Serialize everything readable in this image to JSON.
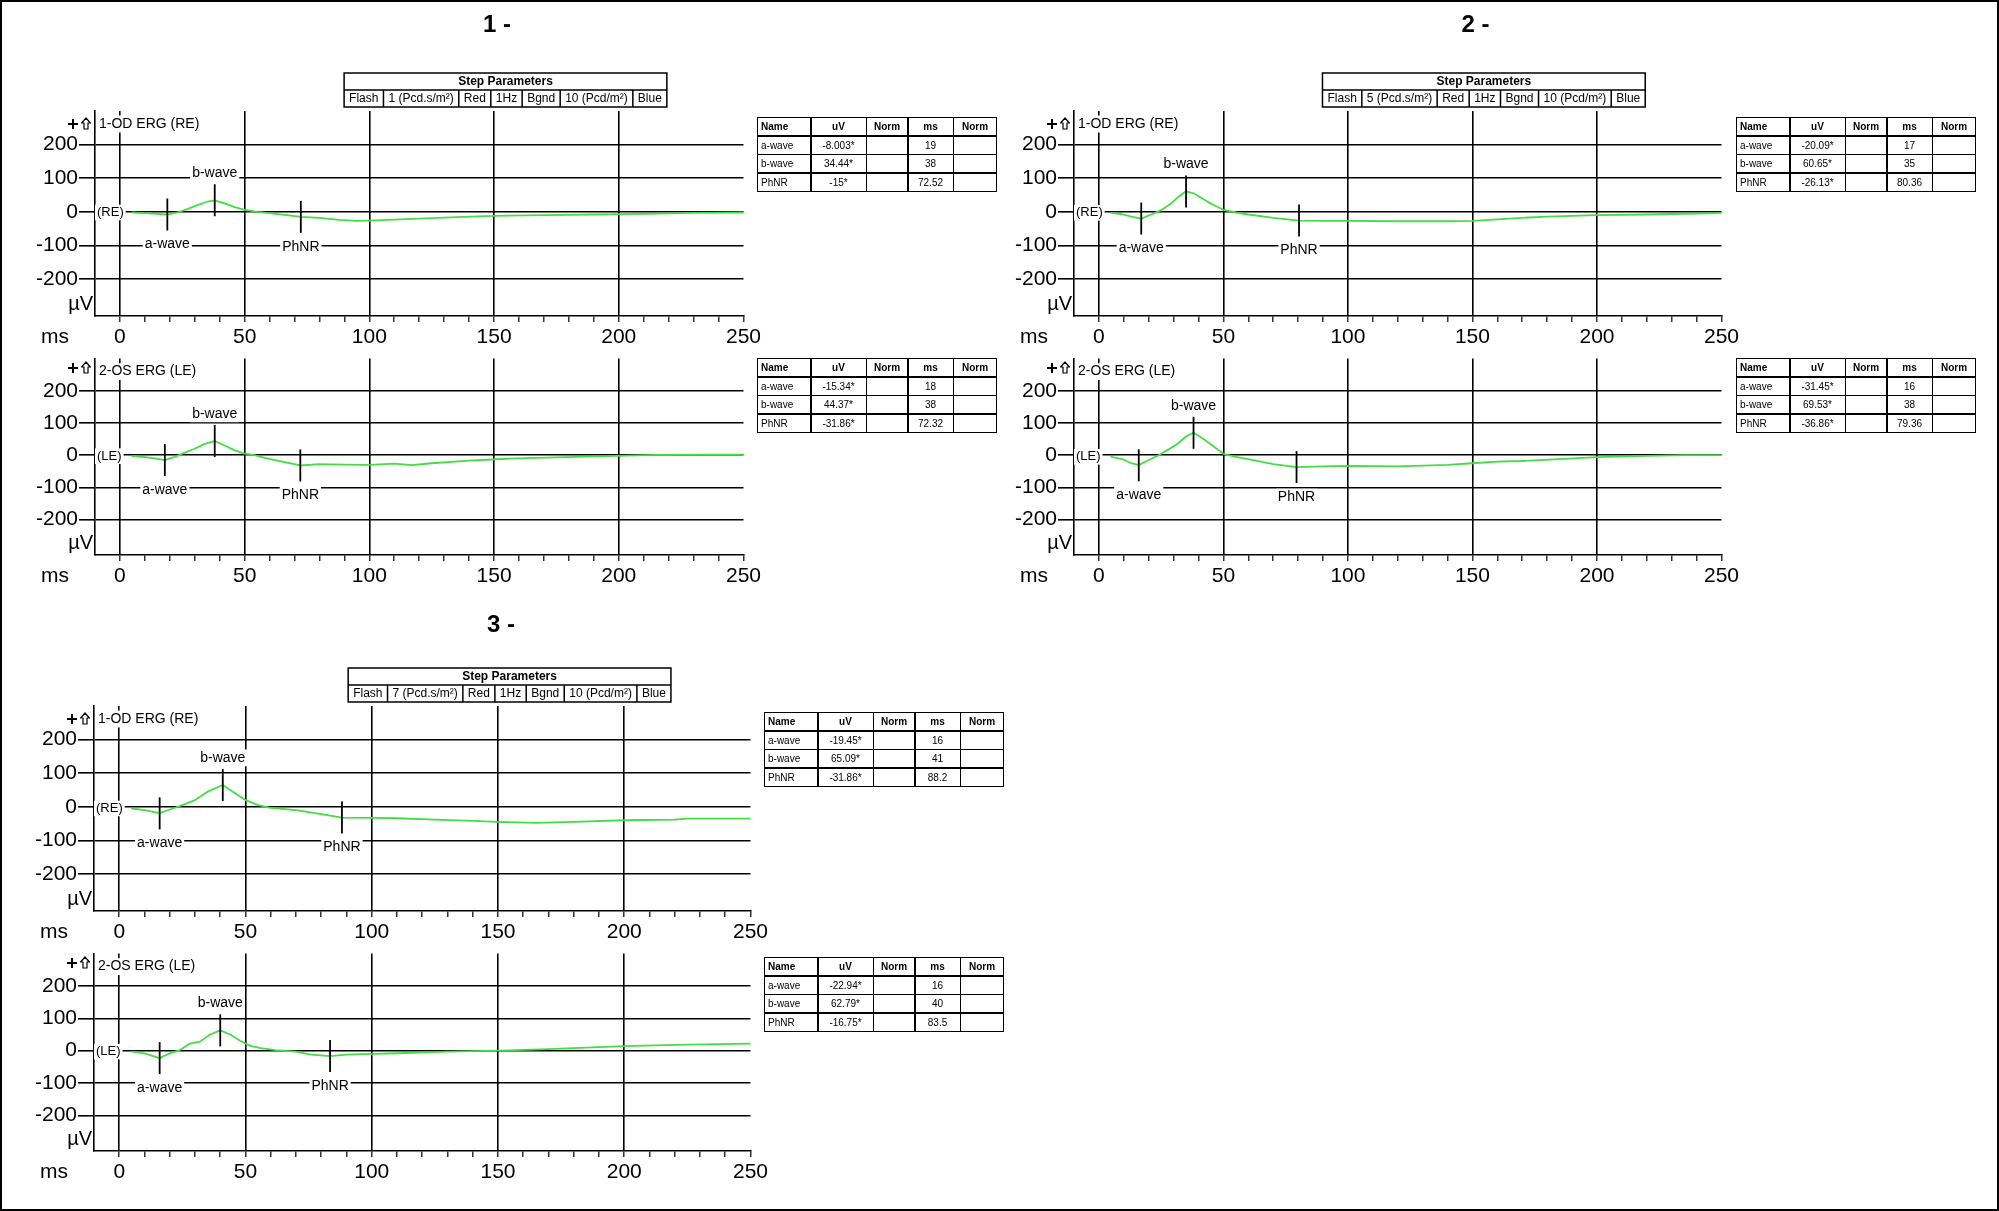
{
  "chart_data": [
    {
      "type": "line",
      "title": "1 -",
      "subtitle": "1-OD ERG (RE)",
      "xlabel": "ms",
      "ylabel": "µV",
      "xlim": [
        -10,
        250
      ],
      "ylim": [
        -310,
        300
      ],
      "yticks": [
        -200,
        -100,
        0,
        100,
        200
      ],
      "xticks": [
        0,
        {
          "value": 10,
          "label": null
        },
        {
          "value": 20,
          "label": null
        },
        {
          "value": 30,
          "label": null
        },
        {
          "value": 40,
          "label": null
        },
        50,
        {
          "value": 60,
          "label": null
        },
        {
          "value": 70,
          "label": null
        },
        {
          "value": 80,
          "label": null
        },
        {
          "value": 90,
          "label": null
        },
        100,
        {
          "value": 110,
          "label": null
        },
        {
          "value": 120,
          "label": null
        },
        {
          "value": 130,
          "label": null
        },
        {
          "value": 140,
          "label": null
        },
        150,
        {
          "value": 160,
          "label": null
        },
        {
          "value": 170,
          "label": null
        },
        {
          "value": 180,
          "label": null
        },
        {
          "value": 190,
          "label": null
        },
        200,
        {
          "value": 210,
          "label": null
        },
        {
          "value": 220,
          "label": null
        },
        {
          "value": 230,
          "label": null
        },
        {
          "value": 240,
          "label": null
        },
        250
      ],
      "grid": true,
      "series": [
        {
          "name": "(RE)",
          "color": "#44dd44",
          "x": [
            5,
            10,
            15,
            19,
            23,
            27,
            31,
            35,
            38,
            42,
            46,
            50,
            55,
            60,
            66,
            72.52,
            80,
            88,
            95,
            100,
            110,
            120,
            135,
            150,
            170,
            190,
            210,
            230,
            250
          ],
          "values": [
            -2,
            -4,
            -6,
            -8,
            -2,
            8,
            20,
            30,
            34,
            25,
            14,
            6,
            0,
            -4,
            -9,
            -15,
            -18,
            -24,
            -27,
            -26,
            -23,
            -20,
            -16,
            -12,
            -10,
            -8,
            -6,
            -3,
            -2
          ]
        }
      ],
      "annotations": [
        {
          "text": "a-wave",
          "x": 19,
          "y": -8.003
        },
        {
          "text": "b-wave",
          "x": 38,
          "y": 34.44
        },
        {
          "text": "PhNR",
          "x": 72.52,
          "y": -15
        },
        "Step Parameters",
        "Flash",
        "1 (Pcd.s/m²)",
        "Red",
        "1Hz",
        "Bgnd",
        "10 (Pcd/m²)",
        "Blue"
      ]
    },
    {
      "type": "other",
      "xlabel": "Name",
      "legend": "top",
      "categories": [
        "a-wave",
        "b-wave",
        "PhNR"
      ],
      "data_labels": true,
      "series": [
        {
          "name": "uV",
          "values": [
            -8.003,
            34.44,
            -15
          ],
          "value_labels": [
            "-8.003*",
            "34.44*",
            "-15*"
          ]
        },
        {
          "name": "Norm",
          "values": [
            null,
            null,
            null
          ]
        },
        {
          "name": "ms",
          "values": [
            19,
            38,
            72.52
          ]
        },
        {
          "name": "Norm",
          "values": [
            null,
            null,
            null
          ]
        }
      ]
    },
    {
      "type": "line",
      "subtitle": "2-OS ERG (LE)",
      "xlabel": "ms",
      "ylabel": "µV",
      "xlim": [
        -10,
        250
      ],
      "ylim": [
        -310,
        300
      ],
      "yticks": [
        -200,
        -100,
        0,
        100,
        200
      ],
      "xticks": [
        0,
        {
          "value": 10,
          "label": null
        },
        {
          "value": 20,
          "label": null
        },
        {
          "value": 30,
          "label": null
        },
        {
          "value": 40,
          "label": null
        },
        50,
        {
          "value": 60,
          "label": null
        },
        {
          "value": 70,
          "label": null
        },
        {
          "value": 80,
          "label": null
        },
        {
          "value": 90,
          "label": null
        },
        100,
        {
          "value": 110,
          "label": null
        },
        {
          "value": 120,
          "label": null
        },
        {
          "value": 130,
          "label": null
        },
        {
          "value": 140,
          "label": null
        },
        150,
        {
          "value": 160,
          "label": null
        },
        {
          "value": 170,
          "label": null
        },
        {
          "value": 180,
          "label": null
        },
        {
          "value": 190,
          "label": null
        },
        200,
        {
          "value": 210,
          "label": null
        },
        {
          "value": 220,
          "label": null
        },
        {
          "value": 230,
          "label": null
        },
        {
          "value": 240,
          "label": null
        },
        250
      ],
      "grid": true,
      "series": [
        {
          "name": "(LE)",
          "color": "#44dd44",
          "x": [
            5,
            10,
            14,
            18,
            22,
            26,
            30,
            34,
            38,
            42,
            46,
            50,
            54,
            58,
            65,
            72.32,
            80,
            90,
            100,
            110,
            117,
            125,
            140,
            155,
            175,
            195,
            215,
            235,
            250
          ],
          "values": [
            -3,
            -6,
            -10,
            -15,
            -5,
            8,
            20,
            35,
            44,
            30,
            15,
            5,
            0,
            -8,
            -20,
            -32,
            -28,
            -29,
            -30,
            -26,
            -31,
            -25,
            -17,
            -11,
            -7,
            -3,
            1,
            2,
            2
          ]
        }
      ],
      "annotations": [
        {
          "text": "a-wave",
          "x": 18,
          "y": -15.34
        },
        {
          "text": "b-wave",
          "x": 38,
          "y": 44.37
        },
        {
          "text": "PhNR",
          "x": 72.32,
          "y": -31.86
        }
      ]
    },
    {
      "type": "other",
      "xlabel": "Name",
      "legend": "top",
      "categories": [
        "a-wave",
        "b-wave",
        "PhNR"
      ],
      "data_labels": true,
      "series": [
        {
          "name": "uV",
          "values": [
            -15.34,
            44.37,
            -31.86
          ],
          "value_labels": [
            "-15.34*",
            "44.37*",
            "-31.86*"
          ]
        },
        {
          "name": "Norm",
          "values": [
            null,
            null,
            null
          ]
        },
        {
          "name": "ms",
          "values": [
            18,
            38,
            72.32
          ]
        },
        {
          "name": "Norm",
          "values": [
            null,
            null,
            null
          ]
        }
      ]
    },
    {
      "type": "line",
      "title": "2 -",
      "subtitle": "1-OD ERG (RE)",
      "xlabel": "ms",
      "ylabel": "µV",
      "xlim": [
        -10,
        250
      ],
      "ylim": [
        -310,
        300
      ],
      "yticks": [
        -200,
        -100,
        0,
        100,
        200
      ],
      "xticks": [
        0,
        {
          "value": 10,
          "label": null
        },
        {
          "value": 20,
          "label": null
        },
        {
          "value": 30,
          "label": null
        },
        {
          "value": 40,
          "label": null
        },
        50,
        {
          "value": 60,
          "label": null
        },
        {
          "value": 70,
          "label": null
        },
        {
          "value": 80,
          "label": null
        },
        {
          "value": 90,
          "label": null
        },
        100,
        {
          "value": 110,
          "label": null
        },
        {
          "value": 120,
          "label": null
        },
        {
          "value": 130,
          "label": null
        },
        {
          "value": 140,
          "label": null
        },
        150,
        {
          "value": 160,
          "label": null
        },
        {
          "value": 170,
          "label": null
        },
        {
          "value": 180,
          "label": null
        },
        {
          "value": 190,
          "label": null
        },
        200,
        {
          "value": 210,
          "label": null
        },
        {
          "value": 220,
          "label": null
        },
        {
          "value": 230,
          "label": null
        },
        {
          "value": 240,
          "label": null
        },
        250
      ],
      "grid": true,
      "series": [
        {
          "name": "(RE)",
          "color": "#44dd44",
          "x": [
            5,
            10,
            13,
            17,
            21,
            25,
            29,
            32,
            35,
            38,
            41,
            45,
            50,
            55,
            60,
            70,
            80.36,
            90,
            100,
            120,
            140,
            150,
            165,
            180,
            200,
            220,
            240,
            250
          ],
          "values": [
            -3,
            -8,
            -14,
            -20,
            -8,
            5,
            25,
            45,
            61,
            55,
            42,
            24,
            6,
            -2,
            -8,
            -18,
            -26,
            -27,
            -27,
            -28,
            -28,
            -27,
            -20,
            -14,
            -10,
            -8,
            -5,
            -3
          ]
        }
      ],
      "annotations": [
        {
          "text": "a-wave",
          "x": 17,
          "y": -20.09
        },
        {
          "text": "b-wave",
          "x": 35,
          "y": 60.65
        },
        {
          "text": "PhNR",
          "x": 80.36,
          "y": -26.13
        },
        "Step Parameters",
        "Flash",
        "5 (Pcd.s/m²)",
        "Red",
        "1Hz",
        "Bgnd",
        "10 (Pcd/m²)",
        "Blue"
      ]
    },
    {
      "type": "other",
      "xlabel": "Name",
      "legend": "top",
      "categories": [
        "a-wave",
        "b-wave",
        "PhNR"
      ],
      "data_labels": true,
      "series": [
        {
          "name": "uV",
          "values": [
            -20.09,
            60.65,
            -26.13
          ],
          "value_labels": [
            "-20.09*",
            "60.65*",
            "-26.13*"
          ]
        },
        {
          "name": "Norm",
          "values": [
            null,
            null,
            null
          ]
        },
        {
          "name": "ms",
          "values": [
            17,
            35,
            80.36
          ]
        },
        {
          "name": "Norm",
          "values": [
            null,
            null,
            null
          ]
        }
      ]
    },
    {
      "type": "line",
      "subtitle": "2-OS ERG (LE)",
      "xlabel": "ms",
      "ylabel": "µV",
      "xlim": [
        -10,
        250
      ],
      "ylim": [
        -310,
        300
      ],
      "yticks": [
        -200,
        -100,
        0,
        100,
        200
      ],
      "xticks": [
        0,
        {
          "value": 10,
          "label": null
        },
        {
          "value": 20,
          "label": null
        },
        {
          "value": 30,
          "label": null
        },
        {
          "value": 40,
          "label": null
        },
        50,
        {
          "value": 60,
          "label": null
        },
        {
          "value": 70,
          "label": null
        },
        {
          "value": 80,
          "label": null
        },
        {
          "value": 90,
          "label": null
        },
        100,
        {
          "value": 110,
          "label": null
        },
        {
          "value": 120,
          "label": null
        },
        {
          "value": 130,
          "label": null
        },
        {
          "value": 140,
          "label": null
        },
        150,
        {
          "value": 160,
          "label": null
        },
        {
          "value": 170,
          "label": null
        },
        {
          "value": 180,
          "label": null
        },
        {
          "value": 190,
          "label": null
        },
        200,
        {
          "value": 210,
          "label": null
        },
        {
          "value": 220,
          "label": null
        },
        {
          "value": 230,
          "label": null
        },
        {
          "value": 240,
          "label": null
        },
        250
      ],
      "grid": true,
      "series": [
        {
          "name": "(LE)",
          "color": "#44dd44",
          "x": [
            5,
            10,
            13,
            16,
            20,
            24,
            28,
            32,
            35,
            38,
            42,
            46,
            50,
            55,
            62,
            70,
            79.36,
            90,
            100,
            120,
            140,
            150,
            160,
            170,
            185,
            200,
            220,
            235,
            250
          ],
          "values": [
            -5,
            -14,
            -25,
            -31,
            -15,
            0,
            18,
            38,
            58,
            70,
            50,
            28,
            4,
            -5,
            -15,
            -28,
            -37,
            -35,
            -33,
            -35,
            -30,
            -25,
            -20,
            -18,
            -12,
            -6,
            -2,
            0,
            0
          ]
        }
      ],
      "annotations": [
        {
          "text": "a-wave",
          "x": 16,
          "y": -31.45
        },
        {
          "text": "b-wave",
          "x": 38,
          "y": 69.53
        },
        {
          "text": "PhNR",
          "x": 79.36,
          "y": -36.86
        }
      ]
    },
    {
      "type": "other",
      "xlabel": "Name",
      "legend": "top",
      "categories": [
        "a-wave",
        "b-wave",
        "PhNR"
      ],
      "data_labels": true,
      "series": [
        {
          "name": "uV",
          "values": [
            -31.45,
            69.53,
            -36.86
          ],
          "value_labels": [
            "-31.45*",
            "69.53*",
            "-36.86*"
          ]
        },
        {
          "name": "Norm",
          "values": [
            null,
            null,
            null
          ]
        },
        {
          "name": "ms",
          "values": [
            16,
            38,
            79.36
          ]
        },
        {
          "name": "Norm",
          "values": [
            null,
            null,
            null
          ]
        }
      ]
    },
    {
      "type": "line",
      "title": "3 -",
      "subtitle": "1-OD ERG (RE)",
      "xlabel": "ms",
      "ylabel": "µV",
      "xlim": [
        -10,
        250
      ],
      "ylim": [
        -310,
        300
      ],
      "yticks": [
        -200,
        -100,
        0,
        100,
        200
      ],
      "xticks": [
        0,
        {
          "value": 10,
          "label": null
        },
        {
          "value": 20,
          "label": null
        },
        {
          "value": 30,
          "label": null
        },
        {
          "value": 40,
          "label": null
        },
        50,
        {
          "value": 60,
          "label": null
        },
        {
          "value": 70,
          "label": null
        },
        {
          "value": 80,
          "label": null
        },
        {
          "value": 90,
          "label": null
        },
        100,
        {
          "value": 110,
          "label": null
        },
        {
          "value": 120,
          "label": null
        },
        {
          "value": 130,
          "label": null
        },
        {
          "value": 140,
          "label": null
        },
        150,
        {
          "value": 160,
          "label": null
        },
        {
          "value": 170,
          "label": null
        },
        {
          "value": 180,
          "label": null
        },
        {
          "value": 190,
          "label": null
        },
        200,
        {
          "value": 210,
          "label": null
        },
        {
          "value": 220,
          "label": null
        },
        {
          "value": 230,
          "label": null
        },
        {
          "value": 240,
          "label": null
        },
        250
      ],
      "grid": true,
      "series": [
        {
          "name": "(RE)",
          "color": "#44dd44",
          "x": [
            5,
            10,
            16,
            20,
            25,
            30,
            35,
            41,
            45,
            50,
            55,
            60,
            70,
            80,
            88.2,
            100,
            110,
            125,
            140,
            150,
            165,
            180,
            200,
            220,
            225,
            235,
            250
          ],
          "values": [
            -5,
            -10,
            -19,
            -8,
            5,
            20,
            45,
            65,
            45,
            20,
            5,
            -3,
            -10,
            -22,
            -32,
            -33,
            -34,
            -38,
            -42,
            -45,
            -48,
            -45,
            -40,
            -38,
            -35,
            -35,
            -35
          ]
        }
      ],
      "annotations": [
        {
          "text": "a-wave",
          "x": 16,
          "y": -19.45
        },
        {
          "text": "b-wave",
          "x": 41,
          "y": 65.09
        },
        {
          "text": "PhNR",
          "x": 88.2,
          "y": -31.86
        },
        "Step Parameters",
        "Flash",
        "7 (Pcd.s/m²)",
        "Red",
        "1Hz",
        "Bgnd",
        "10 (Pcd/m²)",
        "Blue"
      ]
    },
    {
      "type": "other",
      "xlabel": "Name",
      "legend": "top",
      "categories": [
        "a-wave",
        "b-wave",
        "PhNR"
      ],
      "data_labels": true,
      "series": [
        {
          "name": "uV",
          "values": [
            -19.45,
            65.09,
            -31.86
          ],
          "value_labels": [
            "-19.45*",
            "65.09*",
            "-31.86*"
          ]
        },
        {
          "name": "Norm",
          "values": [
            null,
            null,
            null
          ]
        },
        {
          "name": "ms",
          "values": [
            16,
            41,
            88.2
          ]
        },
        {
          "name": "Norm",
          "values": [
            null,
            null,
            null
          ]
        }
      ]
    },
    {
      "type": "line",
      "subtitle": "2-OS ERG (LE)",
      "xlabel": "ms",
      "ylabel": "µV",
      "xlim": [
        -10,
        250
      ],
      "ylim": [
        -310,
        300
      ],
      "yticks": [
        -200,
        -100,
        0,
        100,
        200
      ],
      "xticks": [
        0,
        {
          "value": 10,
          "label": null
        },
        {
          "value": 20,
          "label": null
        },
        {
          "value": 30,
          "label": null
        },
        {
          "value": 40,
          "label": null
        },
        50,
        {
          "value": 60,
          "label": null
        },
        {
          "value": 70,
          "label": null
        },
        {
          "value": 80,
          "label": null
        },
        {
          "value": 90,
          "label": null
        },
        100,
        {
          "value": 110,
          "label": null
        },
        {
          "value": 120,
          "label": null
        },
        {
          "value": 130,
          "label": null
        },
        {
          "value": 140,
          "label": null
        },
        150,
        {
          "value": 160,
          "label": null
        },
        {
          "value": 170,
          "label": null
        },
        {
          "value": 180,
          "label": null
        },
        {
          "value": 190,
          "label": null
        },
        200,
        {
          "value": 210,
          "label": null
        },
        {
          "value": 220,
          "label": null
        },
        {
          "value": 230,
          "label": null
        },
        {
          "value": 240,
          "label": null
        },
        250
      ],
      "grid": true,
      "series": [
        {
          "name": "(LE)",
          "color": "#44dd44",
          "x": [
            5,
            10,
            16,
            20,
            24,
            28,
            32,
            36,
            40,
            44,
            48,
            52,
            56,
            62,
            70,
            76,
            83.5,
            90,
            100,
            110,
            130,
            150,
            170,
            180,
            200,
            220,
            250
          ],
          "values": [
            -3,
            -8,
            -23,
            -8,
            2,
            22,
            28,
            50,
            63,
            50,
            30,
            15,
            8,
            2,
            -3,
            -12,
            -17,
            -12,
            -10,
            -8,
            -3,
            0,
            5,
            8,
            14,
            18,
            22
          ]
        }
      ],
      "annotations": [
        {
          "text": "a-wave",
          "x": 16,
          "y": -22.94
        },
        {
          "text": "b-wave",
          "x": 40,
          "y": 62.79
        },
        {
          "text": "PhNR",
          "x": 83.5,
          "y": -16.75
        }
      ]
    },
    {
      "type": "other",
      "xlabel": "Name",
      "legend": "top",
      "categories": [
        "a-wave",
        "b-wave",
        "PhNR"
      ],
      "data_labels": true,
      "series": [
        {
          "name": "uV",
          "values": [
            -22.94,
            62.79,
            -16.75
          ],
          "value_labels": [
            "-22.94*",
            "62.79*",
            "-16.75*"
          ]
        },
        {
          "name": "Norm",
          "values": [
            null,
            null,
            null
          ]
        },
        {
          "name": "ms",
          "values": [
            16,
            40,
            83.5
          ]
        },
        {
          "name": "Norm",
          "values": [
            null,
            null,
            null
          ]
        }
      ]
    }
  ]
}
